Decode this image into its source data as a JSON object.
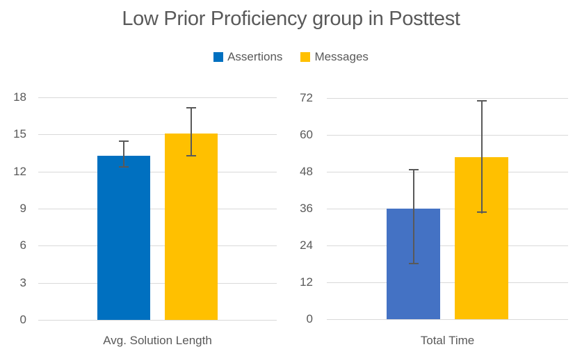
{
  "title": "Low Prior Proficiency group in Posttest",
  "legend": [
    {
      "label": "Assertions",
      "color": "#0070C0"
    },
    {
      "label": "Messages",
      "color": "#FFC000"
    }
  ],
  "colors": {
    "assertions_left": "#0070C0",
    "assertions_right": "#4472C4",
    "messages": "#FFC000",
    "gridline": "#D9D9D9",
    "text": "#595959",
    "error_bar": "#595959"
  },
  "chart_data": [
    {
      "type": "bar",
      "title": "",
      "category": "Avg. Solution Length",
      "xlabel": "",
      "ylabel": "",
      "ylim": [
        0,
        18
      ],
      "yticks": [
        0,
        3,
        6,
        9,
        12,
        15,
        18
      ],
      "grid": true,
      "legend_position": "top-center-shared",
      "series": [
        {
          "name": "Assertions",
          "value": 13.3,
          "error_low": 12.3,
          "error_high": 14.5,
          "color": "#0070C0"
        },
        {
          "name": "Messages",
          "value": 15.1,
          "error_low": 13.2,
          "error_high": 17.2,
          "color": "#FFC000"
        }
      ]
    },
    {
      "type": "bar",
      "title": "",
      "category": "Total Time",
      "xlabel": "",
      "ylabel": "",
      "ylim": [
        0,
        72
      ],
      "yticks": [
        0,
        12,
        24,
        36,
        48,
        60,
        72
      ],
      "grid": true,
      "legend_position": "top-center-shared",
      "series": [
        {
          "name": "Assertions",
          "value": 36,
          "error_low": 18,
          "error_high": 49,
          "color": "#4472C4"
        },
        {
          "name": "Messages",
          "value": 52.8,
          "error_low": 34.6,
          "error_high": 71.4,
          "color": "#FFC000"
        }
      ]
    }
  ]
}
